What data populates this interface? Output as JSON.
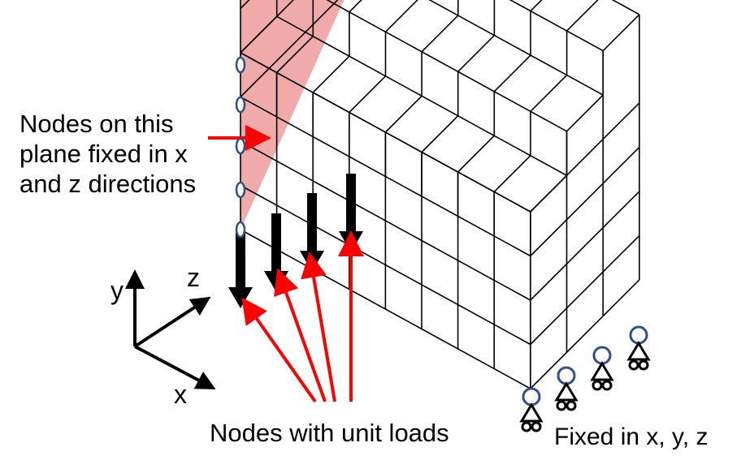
{
  "labels": {
    "fixed_plane": [
      "Nodes on this",
      "plane fixed in x",
      "and z directions"
    ],
    "unit_loads": "Nodes with unit loads",
    "fixed_xyz": "Fixed in x, y, z"
  },
  "axes": {
    "x": "x",
    "y": "y",
    "z": "z"
  },
  "mesh": {
    "columns": 8,
    "rows": 6,
    "depth": 3,
    "bottom_rows": 4
  },
  "colors": {
    "grid": "#000000",
    "fixed_plane_fill": "#f0aaaa",
    "arrow": "#ff0000",
    "load": "#000000",
    "node": "#2f4f8f"
  }
}
